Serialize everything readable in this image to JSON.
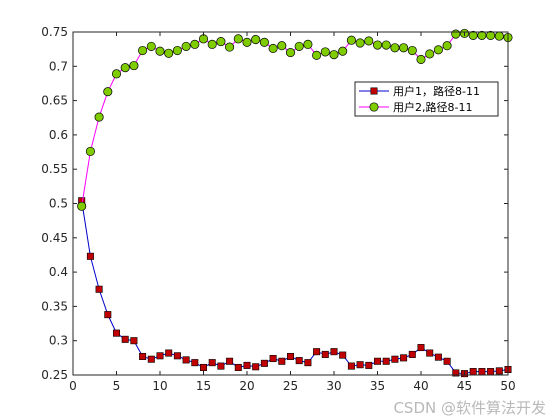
{
  "watermark": "CSDN @软件算法开发",
  "chart_data": {
    "type": "line",
    "title": "",
    "xlabel": "",
    "ylabel": "",
    "xlim": [
      0,
      50
    ],
    "ylim": [
      0.25,
      0.75
    ],
    "xticks": [
      0,
      5,
      10,
      15,
      20,
      25,
      30,
      35,
      40,
      45,
      50
    ],
    "yticks": [
      0.25,
      0.3,
      0.35,
      0.4,
      0.45,
      0.5,
      0.55,
      0.6,
      0.65,
      0.7,
      0.75
    ],
    "grid": false,
    "legend_position": "top-right",
    "x": [
      1,
      2,
      3,
      4,
      5,
      6,
      7,
      8,
      9,
      10,
      11,
      12,
      13,
      14,
      15,
      16,
      17,
      18,
      19,
      20,
      21,
      22,
      23,
      24,
      25,
      26,
      27,
      28,
      29,
      30,
      31,
      32,
      33,
      34,
      35,
      36,
      37,
      38,
      39,
      40,
      41,
      42,
      43,
      44,
      45,
      46,
      47,
      48,
      49,
      50
    ],
    "series": [
      {
        "name": "用户1，路径8-11",
        "line_color": "#0000cc",
        "marker": "square",
        "marker_fill": "#c00000",
        "values": [
          0.504,
          0.423,
          0.375,
          0.338,
          0.311,
          0.302,
          0.3,
          0.277,
          0.273,
          0.278,
          0.282,
          0.278,
          0.272,
          0.268,
          0.261,
          0.268,
          0.263,
          0.27,
          0.261,
          0.264,
          0.262,
          0.267,
          0.274,
          0.27,
          0.277,
          0.271,
          0.268,
          0.284,
          0.28,
          0.284,
          0.279,
          0.263,
          0.265,
          0.264,
          0.27,
          0.27,
          0.273,
          0.275,
          0.28,
          0.29,
          0.282,
          0.276,
          0.27,
          0.253,
          0.252,
          0.255,
          0.255,
          0.255,
          0.256,
          0.258
        ]
      },
      {
        "name": "用户2,路径8-11",
        "line_color": "#ff00ff",
        "marker": "circle",
        "marker_fill": "#7fcc00",
        "values": [
          0.496,
          0.576,
          0.626,
          0.663,
          0.689,
          0.698,
          0.701,
          0.723,
          0.729,
          0.722,
          0.719,
          0.723,
          0.729,
          0.732,
          0.74,
          0.732,
          0.736,
          0.728,
          0.74,
          0.735,
          0.739,
          0.735,
          0.726,
          0.73,
          0.72,
          0.729,
          0.732,
          0.716,
          0.721,
          0.717,
          0.722,
          0.738,
          0.734,
          0.737,
          0.731,
          0.731,
          0.727,
          0.727,
          0.723,
          0.71,
          0.718,
          0.724,
          0.73,
          0.747,
          0.748,
          0.745,
          0.745,
          0.745,
          0.744,
          0.742
        ]
      }
    ]
  }
}
